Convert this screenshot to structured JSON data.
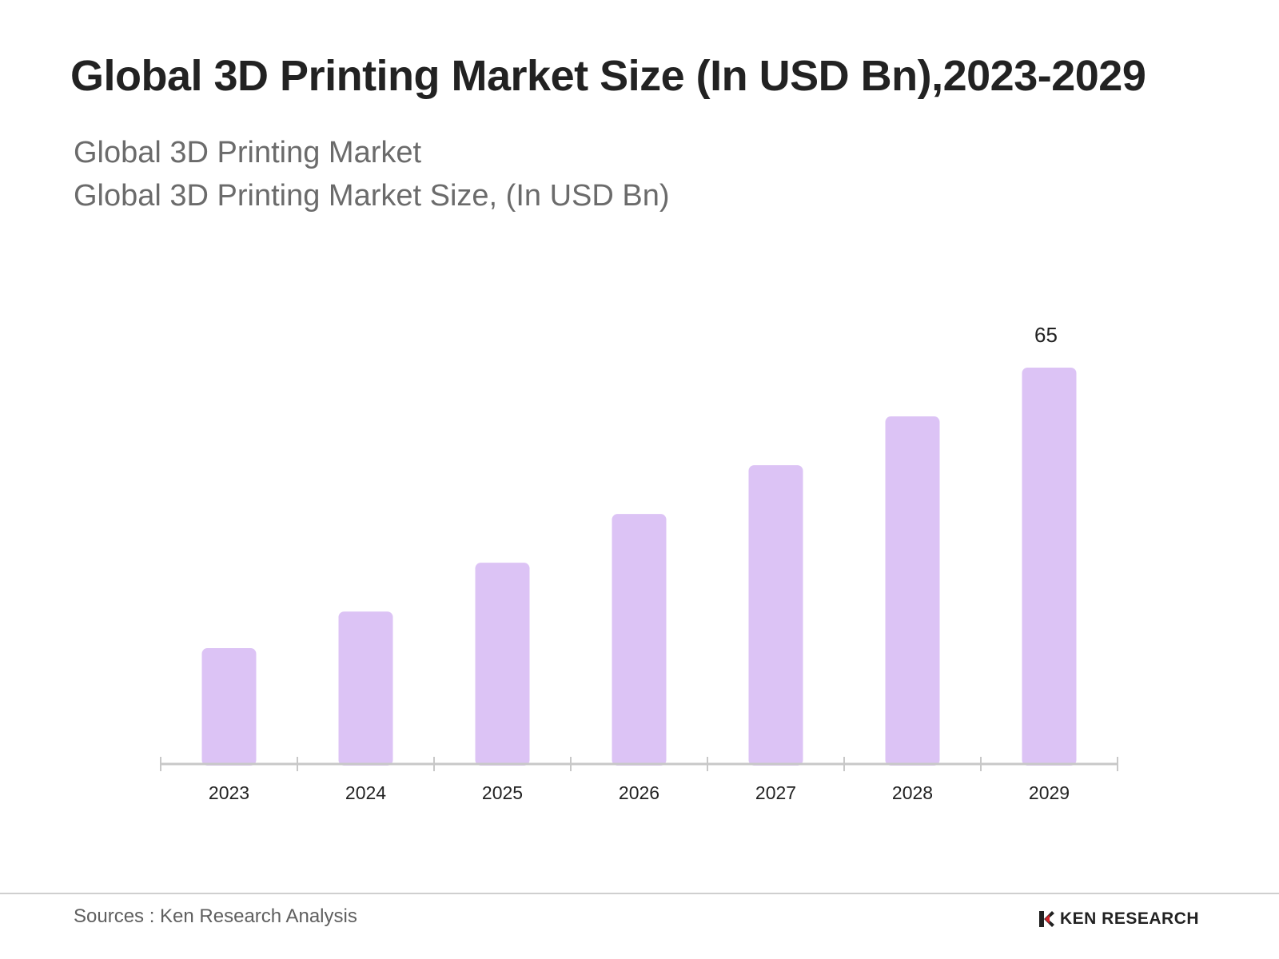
{
  "header": {
    "title": "Global 3D Printing Market Size (In USD Bn),2023-2029",
    "subtitle_line1": "Global 3D Printing Market",
    "subtitle_line2": "Global 3D Printing Market Size, (In USD Bn)"
  },
  "chart_data": {
    "type": "bar",
    "title": "Global 3D Printing Market Size (In USD Bn),2023-2029",
    "subtitle": "Global 3D Printing Market Size, (In USD Bn)",
    "xlabel": "",
    "ylabel": "",
    "categories": [
      "2023",
      "2024",
      "2025",
      "2026",
      "2027",
      "2028",
      "2029"
    ],
    "values": [
      19,
      25,
      33,
      41,
      49,
      57,
      65
    ],
    "data_labels": [
      null,
      null,
      null,
      null,
      null,
      null,
      "65"
    ],
    "ylim": [
      0,
      65
    ],
    "bar_color": "#dcc3f5",
    "axis_color": "#c8c8c8",
    "grid": false,
    "legend": "none"
  },
  "footer": {
    "source": "Sources : Ken Research Analysis",
    "logo_text": "KEN RESEARCH"
  }
}
